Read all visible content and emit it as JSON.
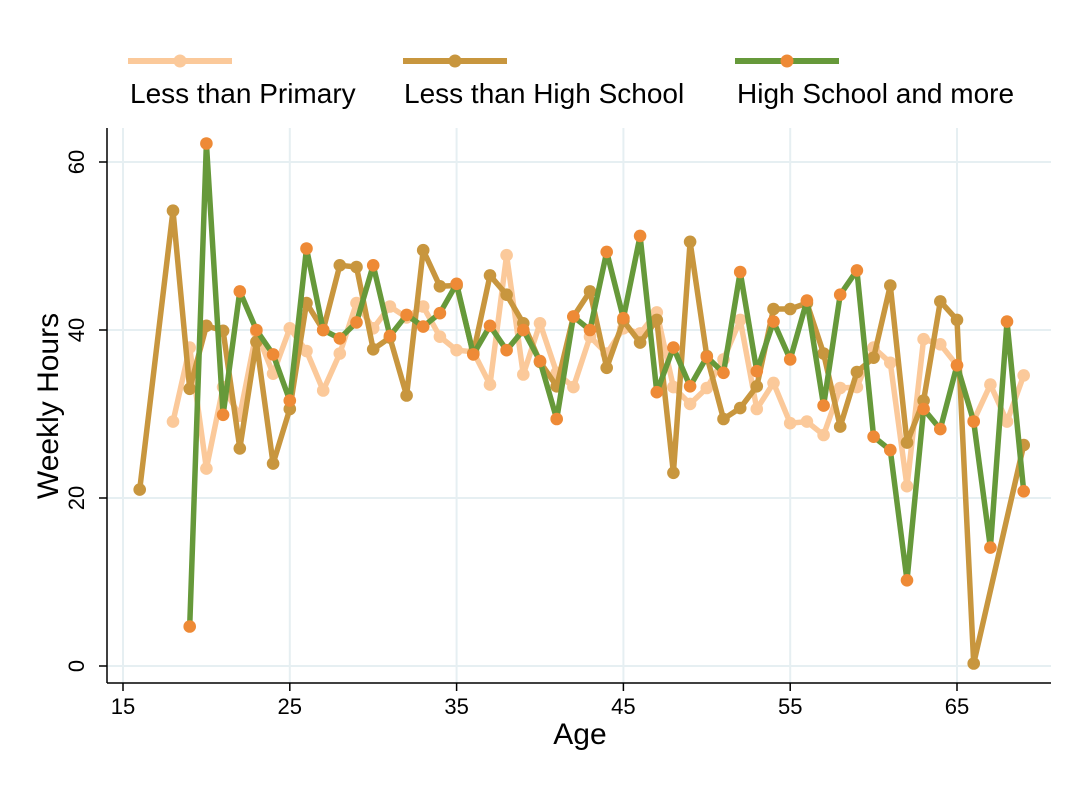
{
  "chart_data": {
    "type": "line",
    "title": "",
    "xlabel": "Age",
    "ylabel": "Weekly Hours",
    "xlim": [
      15,
      70
    ],
    "ylim": [
      0,
      62
    ],
    "x_ticks": [
      15,
      25,
      35,
      45,
      55,
      65
    ],
    "y_ticks": [
      0,
      20,
      40,
      60
    ],
    "grid": true,
    "legend_position": "top",
    "series": [
      {
        "name": "Less than Primary",
        "color": "#FBC99A",
        "marker_color": "#FBC99A",
        "points": [
          [
            18,
            29.1
          ],
          [
            19,
            37.9
          ],
          [
            20,
            23.5
          ],
          [
            21,
            33.2
          ],
          [
            22,
            29.8
          ],
          [
            23,
            39.8
          ],
          [
            24,
            34.8
          ],
          [
            25,
            40.2
          ],
          [
            26,
            37.5
          ],
          [
            27,
            32.8
          ],
          [
            28,
            37.2
          ],
          [
            29,
            43.2
          ],
          [
            30,
            40.2
          ],
          [
            31,
            42.8
          ],
          [
            32,
            41.5
          ],
          [
            33,
            42.8
          ],
          [
            34,
            39.2
          ],
          [
            35,
            37.6
          ],
          [
            36,
            37.4
          ],
          [
            37,
            33.5
          ],
          [
            38,
            48.9
          ],
          [
            39,
            34.7
          ],
          [
            40,
            40.8
          ],
          [
            41,
            34.9
          ],
          [
            42,
            33.2
          ],
          [
            43,
            39.2
          ],
          [
            44,
            37.2
          ],
          [
            45,
            40.2
          ],
          [
            46,
            39.6
          ],
          [
            47,
            42.1
          ],
          [
            48,
            33.2
          ],
          [
            49,
            31.2
          ],
          [
            50,
            33.1
          ],
          [
            51,
            36.5
          ],
          [
            52,
            41.2
          ],
          [
            53,
            30.6
          ],
          [
            54,
            33.7
          ],
          [
            55,
            28.9
          ],
          [
            56,
            29.1
          ],
          [
            57,
            27.5
          ],
          [
            58,
            33.1
          ],
          [
            59,
            33.2
          ],
          [
            60,
            37.9
          ],
          [
            61,
            36.1
          ],
          [
            62,
            21.4
          ],
          [
            63,
            38.9
          ],
          [
            64,
            38.3
          ],
          [
            65,
            35.8
          ],
          [
            66,
            29.2
          ],
          [
            67,
            33.5
          ],
          [
            68,
            29.1
          ],
          [
            69,
            34.6
          ]
        ]
      },
      {
        "name": "Less than High School",
        "color": "#C8963E",
        "marker_color": "#C8963E",
        "points": [
          [
            16,
            21.0
          ],
          [
            18,
            54.2
          ],
          [
            19,
            33.0
          ],
          [
            20,
            40.5
          ],
          [
            21,
            39.9
          ],
          [
            22,
            25.9
          ],
          [
            23,
            38.6
          ],
          [
            24,
            24.1
          ],
          [
            25,
            30.6
          ],
          [
            26,
            43.2
          ],
          [
            27,
            40.0
          ],
          [
            28,
            47.7
          ],
          [
            29,
            47.5
          ],
          [
            30,
            37.7
          ],
          [
            31,
            39.1
          ],
          [
            32,
            32.2
          ],
          [
            33,
            49.5
          ],
          [
            34,
            45.2
          ],
          [
            35,
            45.3
          ],
          [
            36,
            37.2
          ],
          [
            37,
            46.5
          ],
          [
            38,
            44.2
          ],
          [
            39,
            40.8
          ],
          [
            40,
            36.2
          ],
          [
            41,
            33.3
          ],
          [
            42,
            41.6
          ],
          [
            43,
            44.6
          ],
          [
            44,
            35.5
          ],
          [
            45,
            41.1
          ],
          [
            46,
            38.5
          ],
          [
            47,
            41.2
          ],
          [
            48,
            23.0
          ],
          [
            49,
            50.5
          ],
          [
            50,
            36.9
          ],
          [
            51,
            29.4
          ],
          [
            52,
            30.7
          ],
          [
            53,
            33.3
          ],
          [
            54,
            42.5
          ],
          [
            55,
            42.5
          ],
          [
            56,
            43.2
          ],
          [
            57,
            37.2
          ],
          [
            58,
            28.5
          ],
          [
            59,
            35.0
          ],
          [
            60,
            36.7
          ],
          [
            61,
            45.3
          ],
          [
            62,
            26.6
          ],
          [
            63,
            31.6
          ],
          [
            64,
            43.4
          ],
          [
            65,
            41.2
          ],
          [
            66,
            0.3
          ],
          [
            69,
            26.3
          ]
        ]
      },
      {
        "name": "High School and more",
        "color": "#66993A",
        "marker_color": "#EE8A36",
        "points": [
          [
            19,
            4.7
          ],
          [
            20,
            62.2
          ],
          [
            21,
            29.9
          ],
          [
            22,
            44.6
          ],
          [
            23,
            40.0
          ],
          [
            24,
            37.1
          ],
          [
            25,
            31.6
          ],
          [
            26,
            49.7
          ],
          [
            27,
            40.0
          ],
          [
            28,
            39.0
          ],
          [
            29,
            40.9
          ],
          [
            30,
            47.7
          ],
          [
            31,
            39.3
          ],
          [
            32,
            41.8
          ],
          [
            33,
            40.4
          ],
          [
            34,
            42.0
          ],
          [
            35,
            45.5
          ],
          [
            36,
            37.1
          ],
          [
            37,
            40.5
          ],
          [
            38,
            37.6
          ],
          [
            39,
            40.0
          ],
          [
            40,
            36.3
          ],
          [
            41,
            29.4
          ],
          [
            42,
            41.6
          ],
          [
            43,
            40.0
          ],
          [
            44,
            49.3
          ],
          [
            45,
            41.4
          ],
          [
            46,
            51.2
          ],
          [
            47,
            32.6
          ],
          [
            48,
            37.9
          ],
          [
            49,
            33.3
          ],
          [
            50,
            36.8
          ],
          [
            51,
            34.9
          ],
          [
            52,
            46.9
          ],
          [
            53,
            35.1
          ],
          [
            54,
            41.0
          ],
          [
            55,
            36.5
          ],
          [
            56,
            43.5
          ],
          [
            57,
            31.0
          ],
          [
            58,
            44.2
          ],
          [
            59,
            47.1
          ],
          [
            60,
            27.3
          ],
          [
            61,
            25.7
          ],
          [
            62,
            10.2
          ],
          [
            63,
            30.6
          ],
          [
            64,
            28.2
          ],
          [
            65,
            35.8
          ],
          [
            66,
            29.1
          ],
          [
            67,
            14.1
          ],
          [
            68,
            41.0
          ],
          [
            69,
            20.8
          ]
        ]
      }
    ]
  }
}
